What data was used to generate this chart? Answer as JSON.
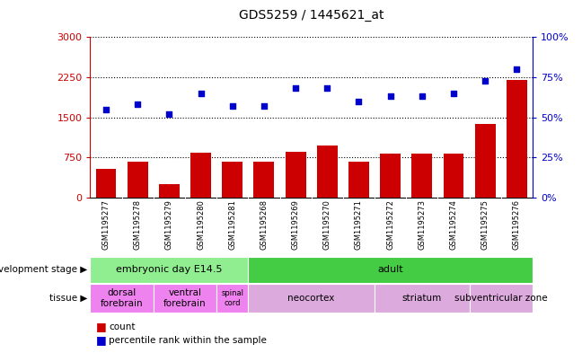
{
  "title": "GDS5259 / 1445621_at",
  "samples": [
    "GSM1195277",
    "GSM1195278",
    "GSM1195279",
    "GSM1195280",
    "GSM1195281",
    "GSM1195268",
    "GSM1195269",
    "GSM1195270",
    "GSM1195271",
    "GSM1195272",
    "GSM1195273",
    "GSM1195274",
    "GSM1195275",
    "GSM1195276"
  ],
  "counts": [
    530,
    680,
    260,
    840,
    680,
    680,
    860,
    980,
    680,
    820,
    820,
    820,
    1370,
    2200
  ],
  "percentiles": [
    55,
    58,
    52,
    65,
    57,
    57,
    68,
    68,
    60,
    63,
    63,
    65,
    73,
    80
  ],
  "ylim_left": [
    0,
    3000
  ],
  "ylim_right": [
    0,
    100
  ],
  "yticks_left": [
    0,
    750,
    1500,
    2250,
    3000
  ],
  "yticks_right": [
    0,
    25,
    50,
    75,
    100
  ],
  "bar_color": "#cc0000",
  "scatter_color": "#0000cc",
  "dev_stage_groups": [
    {
      "label": "embryonic day E14.5",
      "start": 0,
      "end": 5,
      "color": "#90ee90"
    },
    {
      "label": "adult",
      "start": 5,
      "end": 14,
      "color": "#44cc44"
    }
  ],
  "tissue_groups": [
    {
      "label": "dorsal\nforebrain",
      "start": 0,
      "end": 2,
      "color": "#ee82ee"
    },
    {
      "label": "ventral\nforebrain",
      "start": 2,
      "end": 4,
      "color": "#ee82ee"
    },
    {
      "label": "spinal\ncord",
      "start": 4,
      "end": 5,
      "color": "#ee82ee"
    },
    {
      "label": "neocortex",
      "start": 5,
      "end": 9,
      "color": "#ddaadd"
    },
    {
      "label": "striatum",
      "start": 9,
      "end": 12,
      "color": "#ddaadd"
    },
    {
      "label": "subventricular zone",
      "start": 12,
      "end": 14,
      "color": "#ddaadd"
    }
  ],
  "legend_count_label": "count",
  "legend_pct_label": "percentile rank within the sample",
  "dev_stage_label": "development stage",
  "tissue_label": "tissue"
}
